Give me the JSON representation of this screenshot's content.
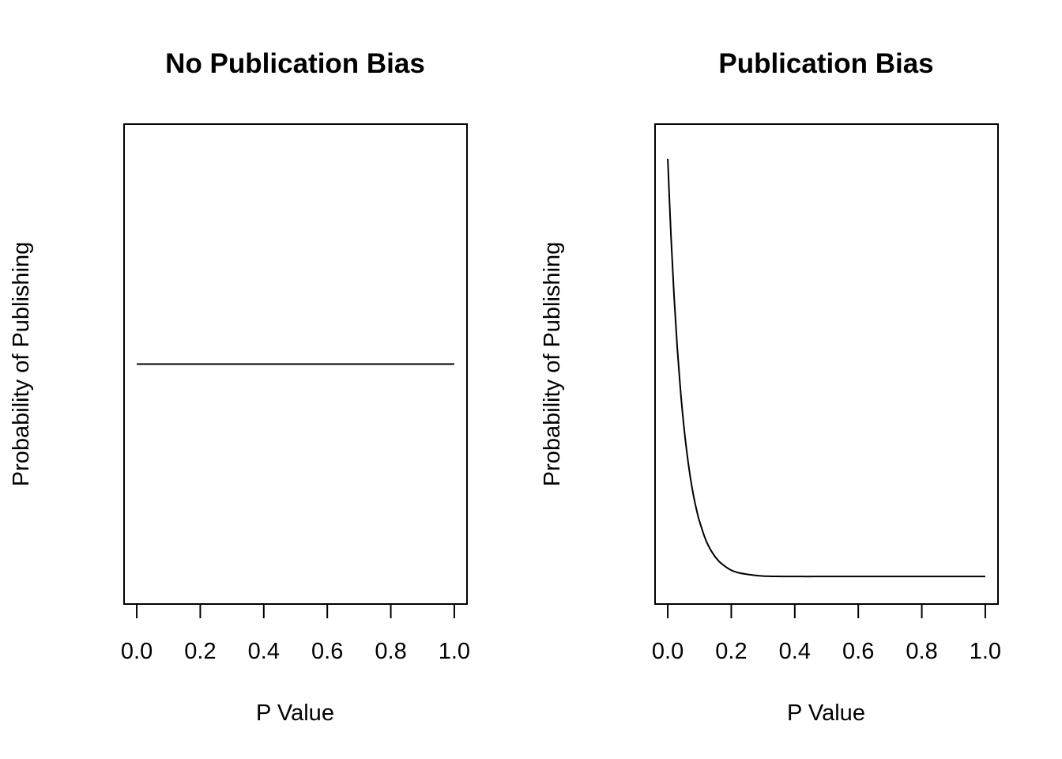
{
  "chart_data": [
    {
      "type": "line",
      "title": "No Publication Bias",
      "xlabel": "P Value",
      "ylabel": "Probability of Publishing",
      "xlim": [
        0,
        1
      ],
      "ylim": [
        0,
        1
      ],
      "x_ticks": [
        "0.0",
        "0.2",
        "0.4",
        "0.6",
        "0.8",
        "1.0"
      ],
      "y_ticks_shown": false,
      "grid": false,
      "series": [
        {
          "x": [
            0,
            1
          ],
          "y": [
            0.5,
            0.5
          ]
        }
      ]
    },
    {
      "type": "line",
      "title": "Publication Bias",
      "xlabel": "P Value",
      "ylabel": "Probability of Publishing",
      "xlim": [
        0,
        1
      ],
      "ylim": [
        0,
        1
      ],
      "x_ticks": [
        "0.0",
        "0.2",
        "0.4",
        "0.6",
        "0.8",
        "1.0"
      ],
      "y_ticks_shown": false,
      "grid": false,
      "series": [
        {
          "x": [
            0,
            0.01,
            0.02,
            0.03,
            0.04,
            0.05,
            0.06,
            0.07,
            0.08,
            0.09,
            0.1,
            0.12,
            0.14,
            0.16,
            0.18,
            0.2,
            0.22,
            0.25,
            0.3,
            0.4,
            0.5,
            0.6,
            0.7,
            0.8,
            0.9,
            1.0
          ],
          "y": [
            0.962,
            0.791,
            0.651,
            0.536,
            0.442,
            0.365,
            0.302,
            0.25,
            0.208,
            0.174,
            0.146,
            0.104,
            0.076,
            0.057,
            0.045,
            0.036,
            0.031,
            0.027,
            0.023,
            0.022,
            0.022,
            0.022,
            0.022,
            0.022,
            0.022,
            0.022
          ]
        }
      ]
    }
  ]
}
